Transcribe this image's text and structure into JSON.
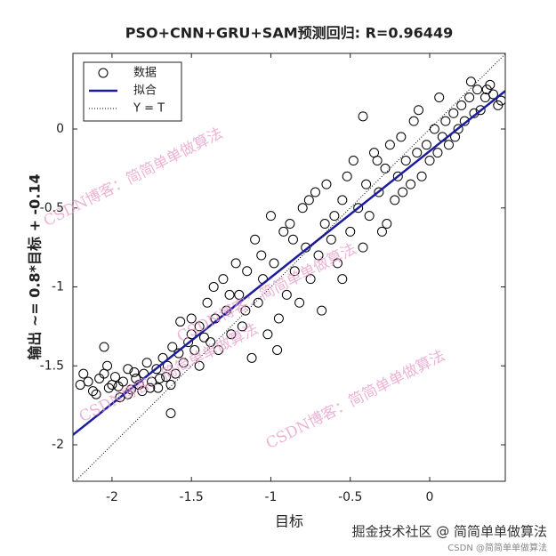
{
  "chart_data": {
    "type": "scatter",
    "title": "PSO+CNN+GRU+SAM预测回归: R=0.96449",
    "xlabel": "目标",
    "ylabel": "输出 ~= 0.8*目标 + -0.14",
    "xlim": [
      -2.246,
      0.476
    ],
    "ylim": [
      -2.231,
      0.479
    ],
    "xticks": [
      -2,
      -1.5,
      -1,
      -0.5,
      0
    ],
    "yticks": [
      -2,
      -1.5,
      -1,
      -0.5,
      0
    ],
    "legend": "upper left",
    "series": [
      {
        "name": "数据",
        "type": "scatter",
        "color": "#000000",
        "x": [
          -2.2,
          -2.15,
          -2.12,
          -2.08,
          -2.05,
          -2.02,
          -2.0,
          -1.98,
          -1.95,
          -1.93,
          -1.9,
          -1.88,
          -1.85,
          -1.83,
          -1.8,
          -1.78,
          -1.75,
          -1.72,
          -1.7,
          -1.68,
          -1.65,
          -1.62,
          -1.6,
          -1.58,
          -1.55,
          -1.52,
          -1.5,
          -1.48,
          -1.45,
          -1.42,
          -2.18,
          -2.1,
          -2.03,
          -1.96,
          -1.9,
          -1.86,
          -1.81,
          -1.76,
          -1.71,
          -1.66,
          -1.63,
          -1.57,
          -1.63,
          -2.05,
          -1.4,
          -1.38,
          -1.35,
          -1.33,
          -1.3,
          -1.28,
          -1.25,
          -1.22,
          -1.2,
          -1.18,
          -1.15,
          -1.12,
          -1.1,
          -1.08,
          -1.05,
          -1.02,
          -1.0,
          -0.98,
          -0.95,
          -0.92,
          -0.9,
          -0.88,
          -0.85,
          -0.82,
          -0.8,
          -0.78,
          -0.75,
          -0.72,
          -0.7,
          -0.68,
          -1.36,
          -1.26,
          -1.16,
          -1.06,
          -0.96,
          -0.86,
          -0.76,
          -0.66,
          -1.45,
          -1.5,
          -0.65,
          -0.62,
          -0.6,
          -0.58,
          -0.55,
          -0.52,
          -0.5,
          -0.48,
          -0.45,
          -0.42,
          -0.4,
          -0.38,
          -0.35,
          -0.32,
          -0.3,
          -0.28,
          -0.25,
          -0.22,
          -0.2,
          -0.18,
          -0.15,
          -0.12,
          -0.1,
          -0.08,
          -0.05,
          -0.02,
          0.0,
          0.03,
          0.05,
          0.08,
          0.1,
          0.12,
          0.15,
          0.18,
          0.2,
          0.22,
          0.25,
          0.28,
          0.3,
          0.32,
          0.35,
          0.38,
          0.4,
          0.43,
          0.45,
          -0.42,
          -0.33,
          -0.27,
          -0.17,
          -0.07,
          0.06,
          0.16,
          0.26,
          0.36,
          -0.55
        ],
        "y": [
          -1.62,
          -1.6,
          -1.66,
          -1.58,
          -1.55,
          -1.64,
          -1.62,
          -1.57,
          -1.7,
          -1.6,
          -1.52,
          -1.65,
          -1.58,
          -1.62,
          -1.55,
          -1.48,
          -1.6,
          -1.52,
          -1.58,
          -1.45,
          -1.5,
          -1.38,
          -1.55,
          -1.42,
          -1.48,
          -1.35,
          -1.3,
          -1.4,
          -1.25,
          -1.32,
          -1.55,
          -1.68,
          -1.5,
          -1.63,
          -1.68,
          -1.54,
          -1.66,
          -1.64,
          -1.64,
          -1.57,
          -1.62,
          -1.22,
          -1.8,
          -1.38,
          -1.1,
          -1.35,
          -1.2,
          -1.4,
          -0.95,
          -1.15,
          -1.3,
          -0.85,
          -1.05,
          -1.25,
          -0.9,
          -1.45,
          -0.7,
          -1.1,
          -0.95,
          -1.3,
          -0.55,
          -0.85,
          -1.2,
          -0.65,
          -1.05,
          -0.6,
          -0.9,
          -1.1,
          -0.5,
          -0.75,
          -0.95,
          -0.4,
          -0.8,
          -1.15,
          -1.0,
          -1.05,
          -1.15,
          -0.8,
          -1.4,
          -0.7,
          -0.45,
          -0.6,
          -1.5,
          -1.2,
          -0.35,
          -0.7,
          -0.55,
          -0.85,
          -0.45,
          -0.3,
          -0.65,
          -0.2,
          -0.5,
          -0.75,
          -0.35,
          -0.55,
          -0.15,
          -0.4,
          -0.65,
          -0.25,
          -0.1,
          -0.45,
          -0.3,
          -0.05,
          -0.2,
          -0.35,
          0.05,
          -0.15,
          -0.3,
          -0.1,
          -0.2,
          0.0,
          -0.15,
          -0.05,
          0.05,
          -0.1,
          0.1,
          0.0,
          0.15,
          0.05,
          0.2,
          0.1,
          0.25,
          0.12,
          0.2,
          0.28,
          0.22,
          0.15,
          0.18,
          0.08,
          -0.2,
          -0.6,
          -0.4,
          0.12,
          0.2,
          -0.05,
          0.3,
          0.25,
          -0.95
        ]
      },
      {
        "name": "拟合",
        "type": "line",
        "color": "#1c1c9e",
        "x": [
          -2.246,
          0.476
        ],
        "y": [
          -1.937,
          0.241
        ]
      },
      {
        "name": "Y = T",
        "type": "line",
        "color": "#000000",
        "dotted": true,
        "x": [
          -2.246,
          0.476
        ],
        "y": [
          -2.246,
          0.476
        ]
      }
    ],
    "annotations": [
      "CSDN博客：简简单单做算法",
      "CSDN博客：简简单单做算法",
      "CSDN博客：简简单单做算法",
      "CSDN博客：简简单单做算法"
    ]
  },
  "footer": [
    "掘金技术社区 @ 简简单单做算法",
    "CSDN @简简单单做算法"
  ]
}
